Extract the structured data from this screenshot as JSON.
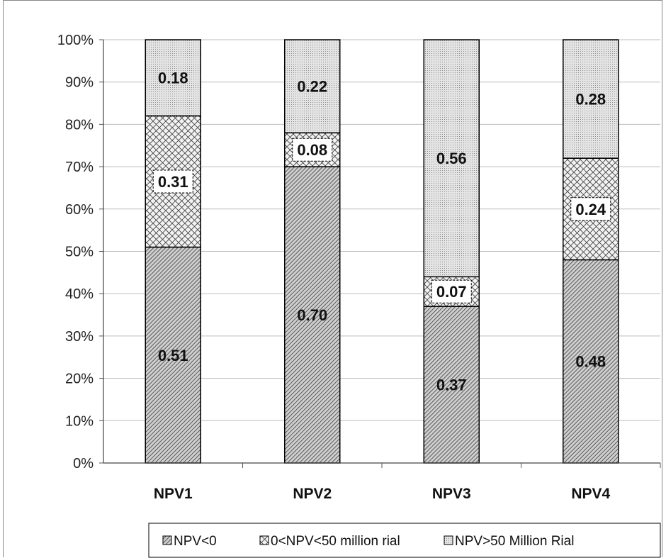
{
  "chart_data": {
    "type": "bar",
    "stacked": true,
    "percent_scale": true,
    "categories": [
      "NPV1",
      "NPV2",
      "NPV3",
      "NPV4"
    ],
    "series": [
      {
        "name": "NPV<0",
        "pattern": "dense-diagonal",
        "values": [
          0.51,
          0.7,
          0.37,
          0.48
        ],
        "labels": [
          "0.51",
          "0.70",
          "0.37",
          "0.48"
        ]
      },
      {
        "name": "0<NPV<50 million rial",
        "pattern": "crosshatch",
        "values": [
          0.31,
          0.08,
          0.07,
          0.24
        ],
        "labels": [
          "0.31",
          "0.08",
          "0.07",
          "0.24"
        ]
      },
      {
        "name": "NPV>50 Million Rial",
        "pattern": "dotted",
        "values": [
          0.18,
          0.22,
          0.56,
          0.28
        ],
        "labels": [
          "0.18",
          "0.22",
          "0.56",
          "0.28"
        ]
      }
    ],
    "yticks": [
      "0%",
      "10%",
      "20%",
      "30%",
      "40%",
      "50%",
      "60%",
      "70%",
      "80%",
      "90%",
      "100%"
    ],
    "ylim": [
      0,
      1
    ],
    "grid": true,
    "legend_position": "bottom",
    "title": "",
    "xlabel": "",
    "ylabel": ""
  }
}
